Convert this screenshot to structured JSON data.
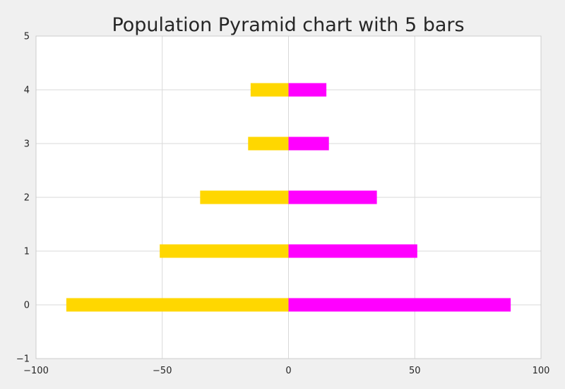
{
  "chart_data": {
    "type": "bar",
    "orientation": "horizontal",
    "title": "Population Pyramid chart with 5 bars",
    "xlabel": "",
    "ylabel": "",
    "categories": [
      0,
      1,
      2,
      3,
      4
    ],
    "series": [
      {
        "values": [
          -88,
          -51,
          -35,
          -16,
          -15
        ],
        "color": "#FFD700"
      },
      {
        "values": [
          88,
          51,
          35,
          16,
          15
        ],
        "color": "#FF00FF"
      }
    ],
    "xlim": [
      -100,
      100
    ],
    "ylim": [
      -1,
      5
    ],
    "xticks": [
      -100,
      -50,
      0,
      50,
      100
    ],
    "xtick_labels": [
      "−100",
      "−50",
      "0",
      "50",
      "100"
    ],
    "yticks": [
      -1,
      0,
      1,
      2,
      3,
      4,
      5
    ],
    "ytick_labels": [
      "−1",
      "0",
      "1",
      "2",
      "3",
      "4",
      "5"
    ],
    "bar_height": 0.25,
    "grid": true,
    "background": "#f0f0f0",
    "plot_background": "#ffffff",
    "grid_color": "#d9d9d9",
    "axes_edge_color": "#cccccc"
  }
}
